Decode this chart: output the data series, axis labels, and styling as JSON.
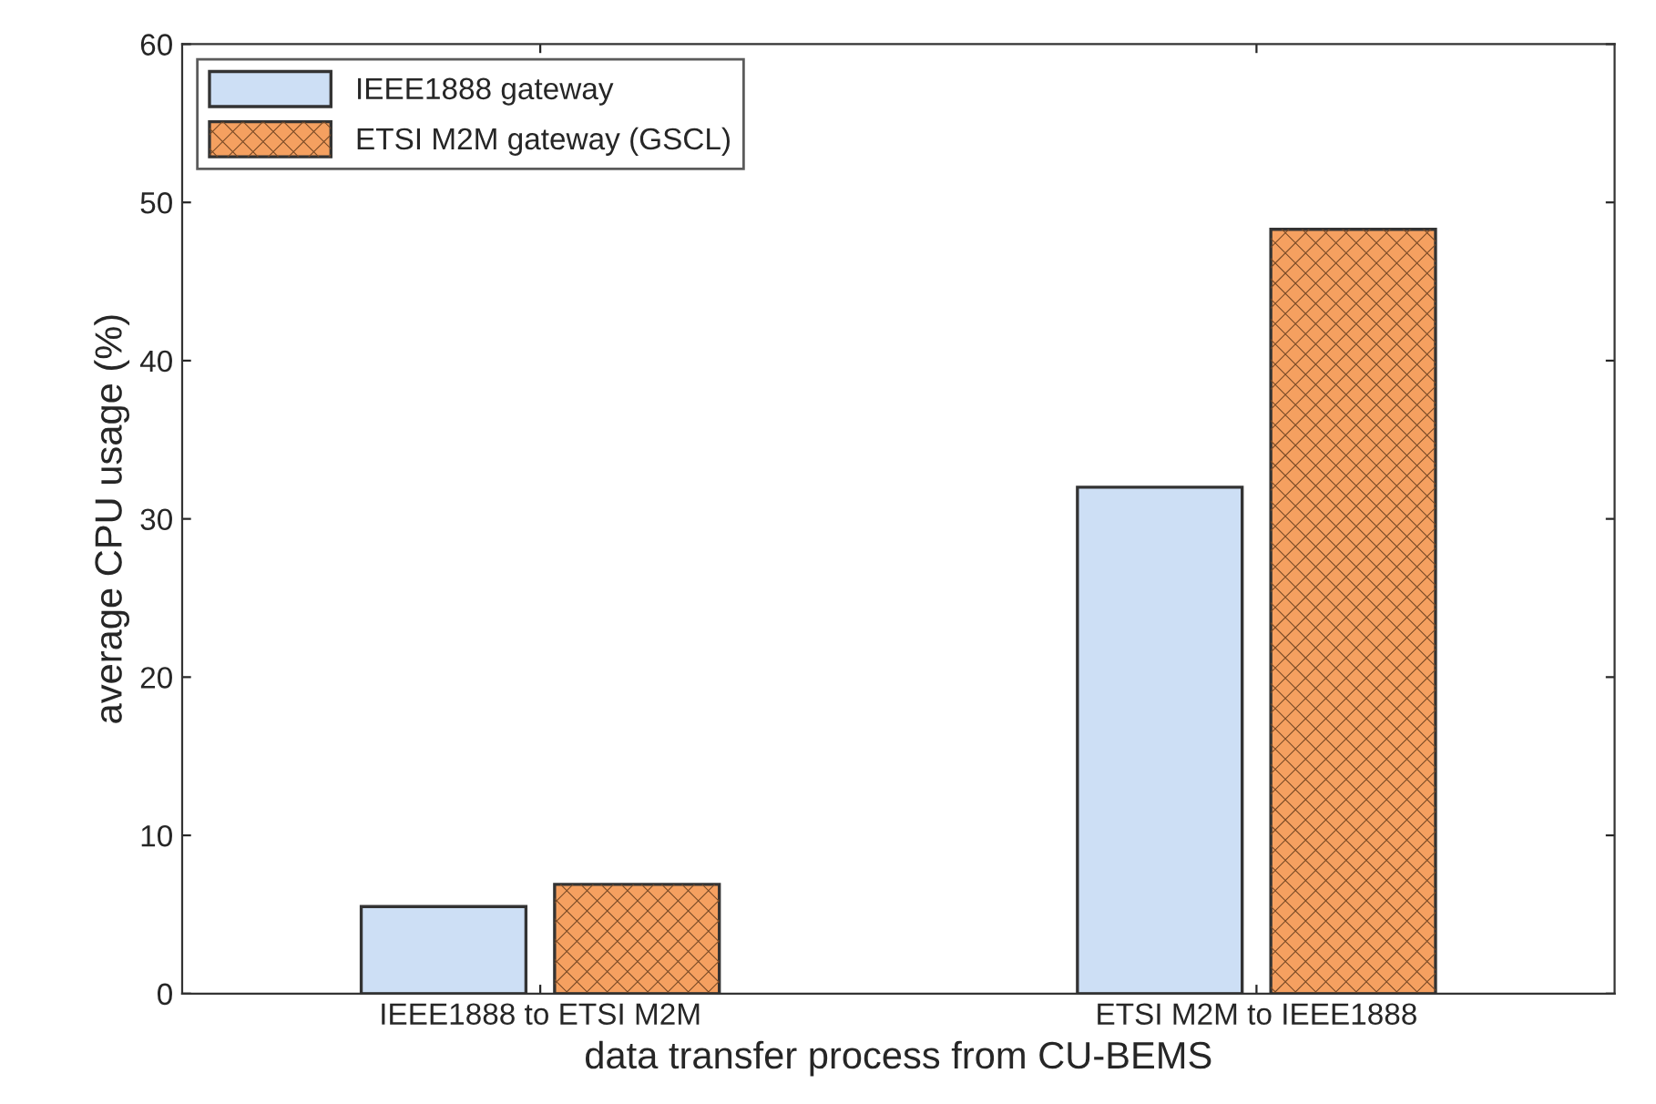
{
  "chart_data": {
    "type": "bar",
    "xlabel": "data transfer process from CU-BEMS",
    "ylabel": "average CPU usage (%)",
    "categories": [
      "IEEE1888 to ETSI M2M",
      "ETSI M2M to IEEE1888"
    ],
    "series": [
      {
        "name": "IEEE1888 gateway",
        "color": "#cddff5",
        "values": [
          5.5,
          32
        ]
      },
      {
        "name": "ETSI M2M gateway (GSCL)",
        "color": "#f5a060",
        "values": [
          6.9,
          48.3
        ]
      }
    ],
    "ylim": [
      0,
      60
    ],
    "yticks": [
      0,
      10,
      20,
      30,
      40,
      50,
      60
    ],
    "grid": false,
    "legend": "top left"
  }
}
